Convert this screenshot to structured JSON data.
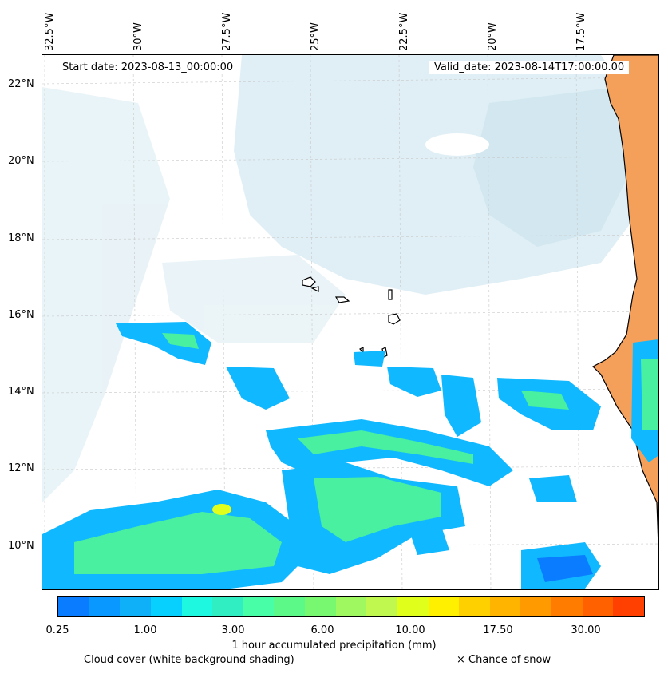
{
  "header": {
    "start_date": "Start date: 2023-08-13_00:00:00",
    "valid_date": "Valid_date: 2023-08-14T17:00:00.00"
  },
  "axes": {
    "lon_labels": [
      "32.5°W",
      "30°W",
      "27.5°W",
      "25°W",
      "22.5°W",
      "20°W",
      "17.5°W"
    ],
    "lat_labels": [
      "22°N",
      "20°N",
      "18°N",
      "16°N",
      "14°N",
      "12°N",
      "10°N"
    ]
  },
  "colorbar": {
    "tick_labels": [
      "0.25",
      "1.00",
      "3.00",
      "6.00",
      "10.00",
      "17.50",
      "30.00"
    ],
    "title": "1 hour accumulated precipitation (mm)",
    "colors": [
      "#0a7cff",
      "#0898ff",
      "#10b0f8",
      "#07d0ff",
      "#1ff8e0",
      "#30eec2",
      "#48ffa8",
      "#5cf888",
      "#78f870",
      "#a0f860",
      "#c0f850",
      "#e0ff1a",
      "#fff000",
      "#ffd000",
      "#ffb400",
      "#ff9a00",
      "#ff7c00",
      "#ff6000",
      "#ff4000"
    ]
  },
  "legend": {
    "cloud": "Cloud cover (white background shading)",
    "snow": "× Chance of snow"
  },
  "map": {
    "land_color": "#f5a05a",
    "cloud_color": "#cfe6ef",
    "precip_low_color": "#10b8ff",
    "precip_mid_color": "#48f0a0"
  }
}
